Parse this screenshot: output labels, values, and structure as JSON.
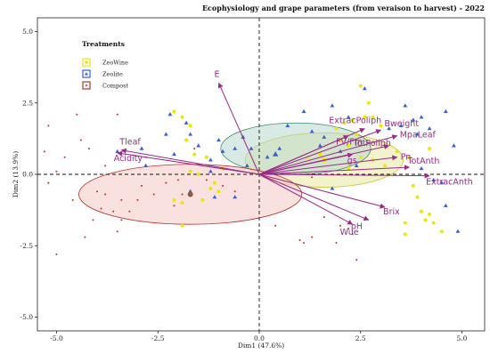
{
  "chart_data": {
    "type": "scatter",
    "subtype": "pca-biplot",
    "title": "Ecophysiology and grape parameters (from veraison to harvest) - 2022",
    "xlabel": "Dim1 (47.6%)",
    "ylabel": "Dim2 (13.9%)",
    "xlim": [
      -5.4,
      5.4
    ],
    "ylim": [
      -5.8,
      5.3
    ],
    "x_ticks": [
      -5.0,
      -2.5,
      0.0,
      2.5,
      5.0
    ],
    "x_tick_labels": [
      "-5.0",
      "-2.5",
      "0.0",
      "2.5",
      "5.0"
    ],
    "y_ticks": [
      -5.0,
      -2.5,
      0.0,
      2.5,
      5.0
    ],
    "y_tick_labels": [
      "-5.0",
      "-2.5",
      "0.0",
      "2.5",
      "5.0"
    ],
    "grid": false,
    "reference_lines": "dashed lines at x=0 and y=0",
    "legend_position": "top-left",
    "legend_title": "Treatments",
    "series": [
      {
        "name": "ZeoWine",
        "color": "#e8e80a",
        "marker": "circle",
        "centroid": [
          1.6,
          0.5
        ],
        "ellipse": {
          "cx": 1.6,
          "cy": 0.5,
          "rx": 1.95,
          "ry": 0.95,
          "fill": "#e8e8a0",
          "stroke": "#c9c52a"
        },
        "points": [
          [
            -2.1,
            2.2
          ],
          [
            -1.9,
            2.0
          ],
          [
            -1.7,
            1.7
          ],
          [
            -1.8,
            1.2
          ],
          [
            -1.6,
            0.7
          ],
          [
            -1.3,
            0.6
          ],
          [
            -1.7,
            0.1
          ],
          [
            -1.5,
            0.0
          ],
          [
            -1.2,
            -0.5
          ],
          [
            -1.0,
            -0.6
          ],
          [
            -1.4,
            -0.9
          ],
          [
            -1.9,
            -1.0
          ],
          [
            -2.1,
            -0.9
          ],
          [
            -1.9,
            -1.8
          ],
          [
            -1.1,
            -0.3
          ],
          [
            -0.9,
            0.2
          ],
          [
            1.2,
            0.6
          ],
          [
            1.5,
            0.7
          ],
          [
            1.9,
            1.6
          ],
          [
            2.1,
            1.8
          ],
          [
            2.3,
            1.9
          ],
          [
            2.0,
            1.2
          ],
          [
            2.2,
            1.0
          ],
          [
            2.5,
            0.6
          ],
          [
            2.2,
            0.2
          ],
          [
            2.4,
            1.4
          ],
          [
            2.6,
            2.0
          ],
          [
            2.7,
            2.5
          ],
          [
            2.8,
            2.0
          ],
          [
            3.0,
            1.7
          ],
          [
            2.5,
            3.1
          ],
          [
            3.4,
            0.8
          ],
          [
            3.7,
            0.6
          ],
          [
            3.8,
            -0.4
          ],
          [
            3.9,
            -0.8
          ],
          [
            4.0,
            -1.3
          ],
          [
            4.2,
            -1.4
          ],
          [
            4.1,
            -1.6
          ],
          [
            3.6,
            -1.7
          ],
          [
            3.6,
            -2.1
          ],
          [
            4.3,
            -1.7
          ],
          [
            4.5,
            -2.0
          ],
          [
            2.8,
            0.5
          ],
          [
            3.1,
            0.3
          ],
          [
            4.2,
            0.9
          ]
        ]
      },
      {
        "name": "Zeolite",
        "color": "#3a5ed8",
        "marker": "triangle",
        "centroid": [
          0.4,
          0.7
        ],
        "ellipse": {
          "cx": 0.9,
          "cy": 0.9,
          "rx": 1.85,
          "ry": 0.9,
          "fill": "#b8d8cc",
          "stroke": "#3a8a6a"
        },
        "points": [
          [
            -3.5,
            0.8
          ],
          [
            -2.9,
            0.9
          ],
          [
            -2.1,
            0.7
          ],
          [
            -2.8,
            0.3
          ],
          [
            -2.3,
            1.4
          ],
          [
            -1.8,
            1.8
          ],
          [
            -1.7,
            1.4
          ],
          [
            -1.5,
            1.0
          ],
          [
            -2.2,
            2.1
          ],
          [
            -1.2,
            0.5
          ],
          [
            -1.0,
            1.2
          ],
          [
            -0.9,
            0.8
          ],
          [
            -0.6,
            0.9
          ],
          [
            -0.4,
            1.3
          ],
          [
            -0.2,
            0.9
          ],
          [
            -0.3,
            0.3
          ],
          [
            -1.2,
            0.1
          ],
          [
            -1.1,
            -0.8
          ],
          [
            -1.7,
            -0.6
          ],
          [
            -0.6,
            -0.8
          ],
          [
            0.2,
            0.6
          ],
          [
            0.5,
            0.9
          ],
          [
            1.3,
            1.5
          ],
          [
            1.5,
            1.0
          ],
          [
            1.6,
            1.3
          ],
          [
            1.8,
            2.4
          ],
          [
            2.0,
            0.8
          ],
          [
            2.2,
            2.0
          ],
          [
            2.6,
            3.0
          ],
          [
            3.2,
            1.6
          ],
          [
            3.5,
            1.7
          ],
          [
            3.6,
            2.4
          ],
          [
            3.8,
            1.9
          ],
          [
            3.9,
            1.4
          ],
          [
            4.0,
            2.0
          ],
          [
            4.2,
            1.6
          ],
          [
            4.0,
            0.2
          ],
          [
            4.3,
            -0.2
          ],
          [
            4.5,
            -0.3
          ],
          [
            4.6,
            -1.1
          ],
          [
            4.9,
            -2.0
          ],
          [
            4.6,
            2.2
          ],
          [
            4.8,
            1.0
          ],
          [
            2.4,
            0.3
          ],
          [
            1.8,
            -0.5
          ],
          [
            0.7,
            1.7
          ],
          [
            1.1,
            2.2
          ]
        ]
      },
      {
        "name": "Compost",
        "color": "#b5332a",
        "marker": "small-dot",
        "centroid": [
          -1.7,
          -0.7
        ],
        "ellipse": {
          "cx": -1.7,
          "cy": -0.7,
          "rx": 2.75,
          "ry": 1.05,
          "fill": "#f4c8c4",
          "stroke": "#b5332a"
        },
        "points": [
          [
            -5.2,
            -0.3
          ],
          [
            -5.0,
            -2.8
          ],
          [
            -5.0,
            0.1
          ],
          [
            -4.8,
            0.6
          ],
          [
            -4.6,
            -0.9
          ],
          [
            -4.3,
            -2.2
          ],
          [
            -4.2,
            0.9
          ],
          [
            -4.1,
            -1.6
          ],
          [
            -4.0,
            -0.6
          ],
          [
            -3.9,
            -1.2
          ],
          [
            -3.8,
            0.3
          ],
          [
            -3.6,
            -1.3
          ],
          [
            -3.5,
            -2.0
          ],
          [
            -3.4,
            -1.6
          ],
          [
            -3.2,
            -1.3
          ],
          [
            -3.0,
            -0.9
          ],
          [
            -2.9,
            -0.4
          ],
          [
            -2.8,
            0.6
          ],
          [
            -2.6,
            -0.7
          ],
          [
            -2.3,
            -0.3
          ],
          [
            -2.1,
            -1.1
          ],
          [
            -2.0,
            -0.2
          ],
          [
            -1.9,
            -0.7
          ],
          [
            -1.6,
            0.9
          ],
          [
            -1.3,
            -0.2
          ],
          [
            -0.9,
            -0.4
          ],
          [
            -0.6,
            -0.6
          ],
          [
            -3.4,
            -0.9
          ],
          [
            -3.8,
            -0.7
          ],
          [
            -4.4,
            1.2
          ],
          [
            -5.2,
            1.7
          ],
          [
            -5.3,
            0.8
          ],
          [
            -3.5,
            2.1
          ],
          [
            -4.5,
            2.1
          ],
          [
            1.0,
            -2.3
          ],
          [
            1.1,
            -2.4
          ],
          [
            1.3,
            -2.2
          ],
          [
            1.9,
            -2.4
          ],
          [
            2.2,
            -1.9
          ],
          [
            2.3,
            -2.1
          ],
          [
            2.4,
            -3.0
          ],
          [
            2.0,
            -1.8
          ],
          [
            1.3,
            -0.1
          ],
          [
            1.6,
            -1.5
          ],
          [
            0.4,
            -1.8
          ]
        ]
      }
    ],
    "variable_vectors": [
      {
        "name": "E",
        "x": -1.0,
        "y": 3.2
      },
      {
        "name": "ExtracPoliph",
        "x": 2.6,
        "y": 1.6
      },
      {
        "name": "Bweight",
        "x": 3.0,
        "y": 1.55
      },
      {
        "name": "FV/Fm",
        "x": 2.2,
        "y": 1.35
      },
      {
        "name": "MpaLeaf",
        "x": 3.4,
        "y": 1.35
      },
      {
        "name": "TotPoliph",
        "x": 3.2,
        "y": 1.0
      },
      {
        "name": "Tleaf",
        "x": -3.4,
        "y": 0.85
      },
      {
        "name": "Acidity",
        "x": -3.5,
        "y": 0.75
      },
      {
        "name": "gs",
        "x": 2.3,
        "y": 0.7
      },
      {
        "name": "Pn",
        "x": 3.4,
        "y": 0.6
      },
      {
        "name": "TotAnth",
        "x": 3.7,
        "y": 0.25
      },
      {
        "name": "ExtracAnth",
        "x": 4.2,
        "y": -0.05
      },
      {
        "name": "Brix",
        "x": 3.1,
        "y": -1.15
      },
      {
        "name": "pH",
        "x": 2.7,
        "y": -1.6
      },
      {
        "name": "Wue",
        "x": 2.3,
        "y": -1.75
      }
    ]
  },
  "colors": {
    "vector": "#9a2a8a",
    "axis": "#222222",
    "zero_line": "#111111"
  }
}
